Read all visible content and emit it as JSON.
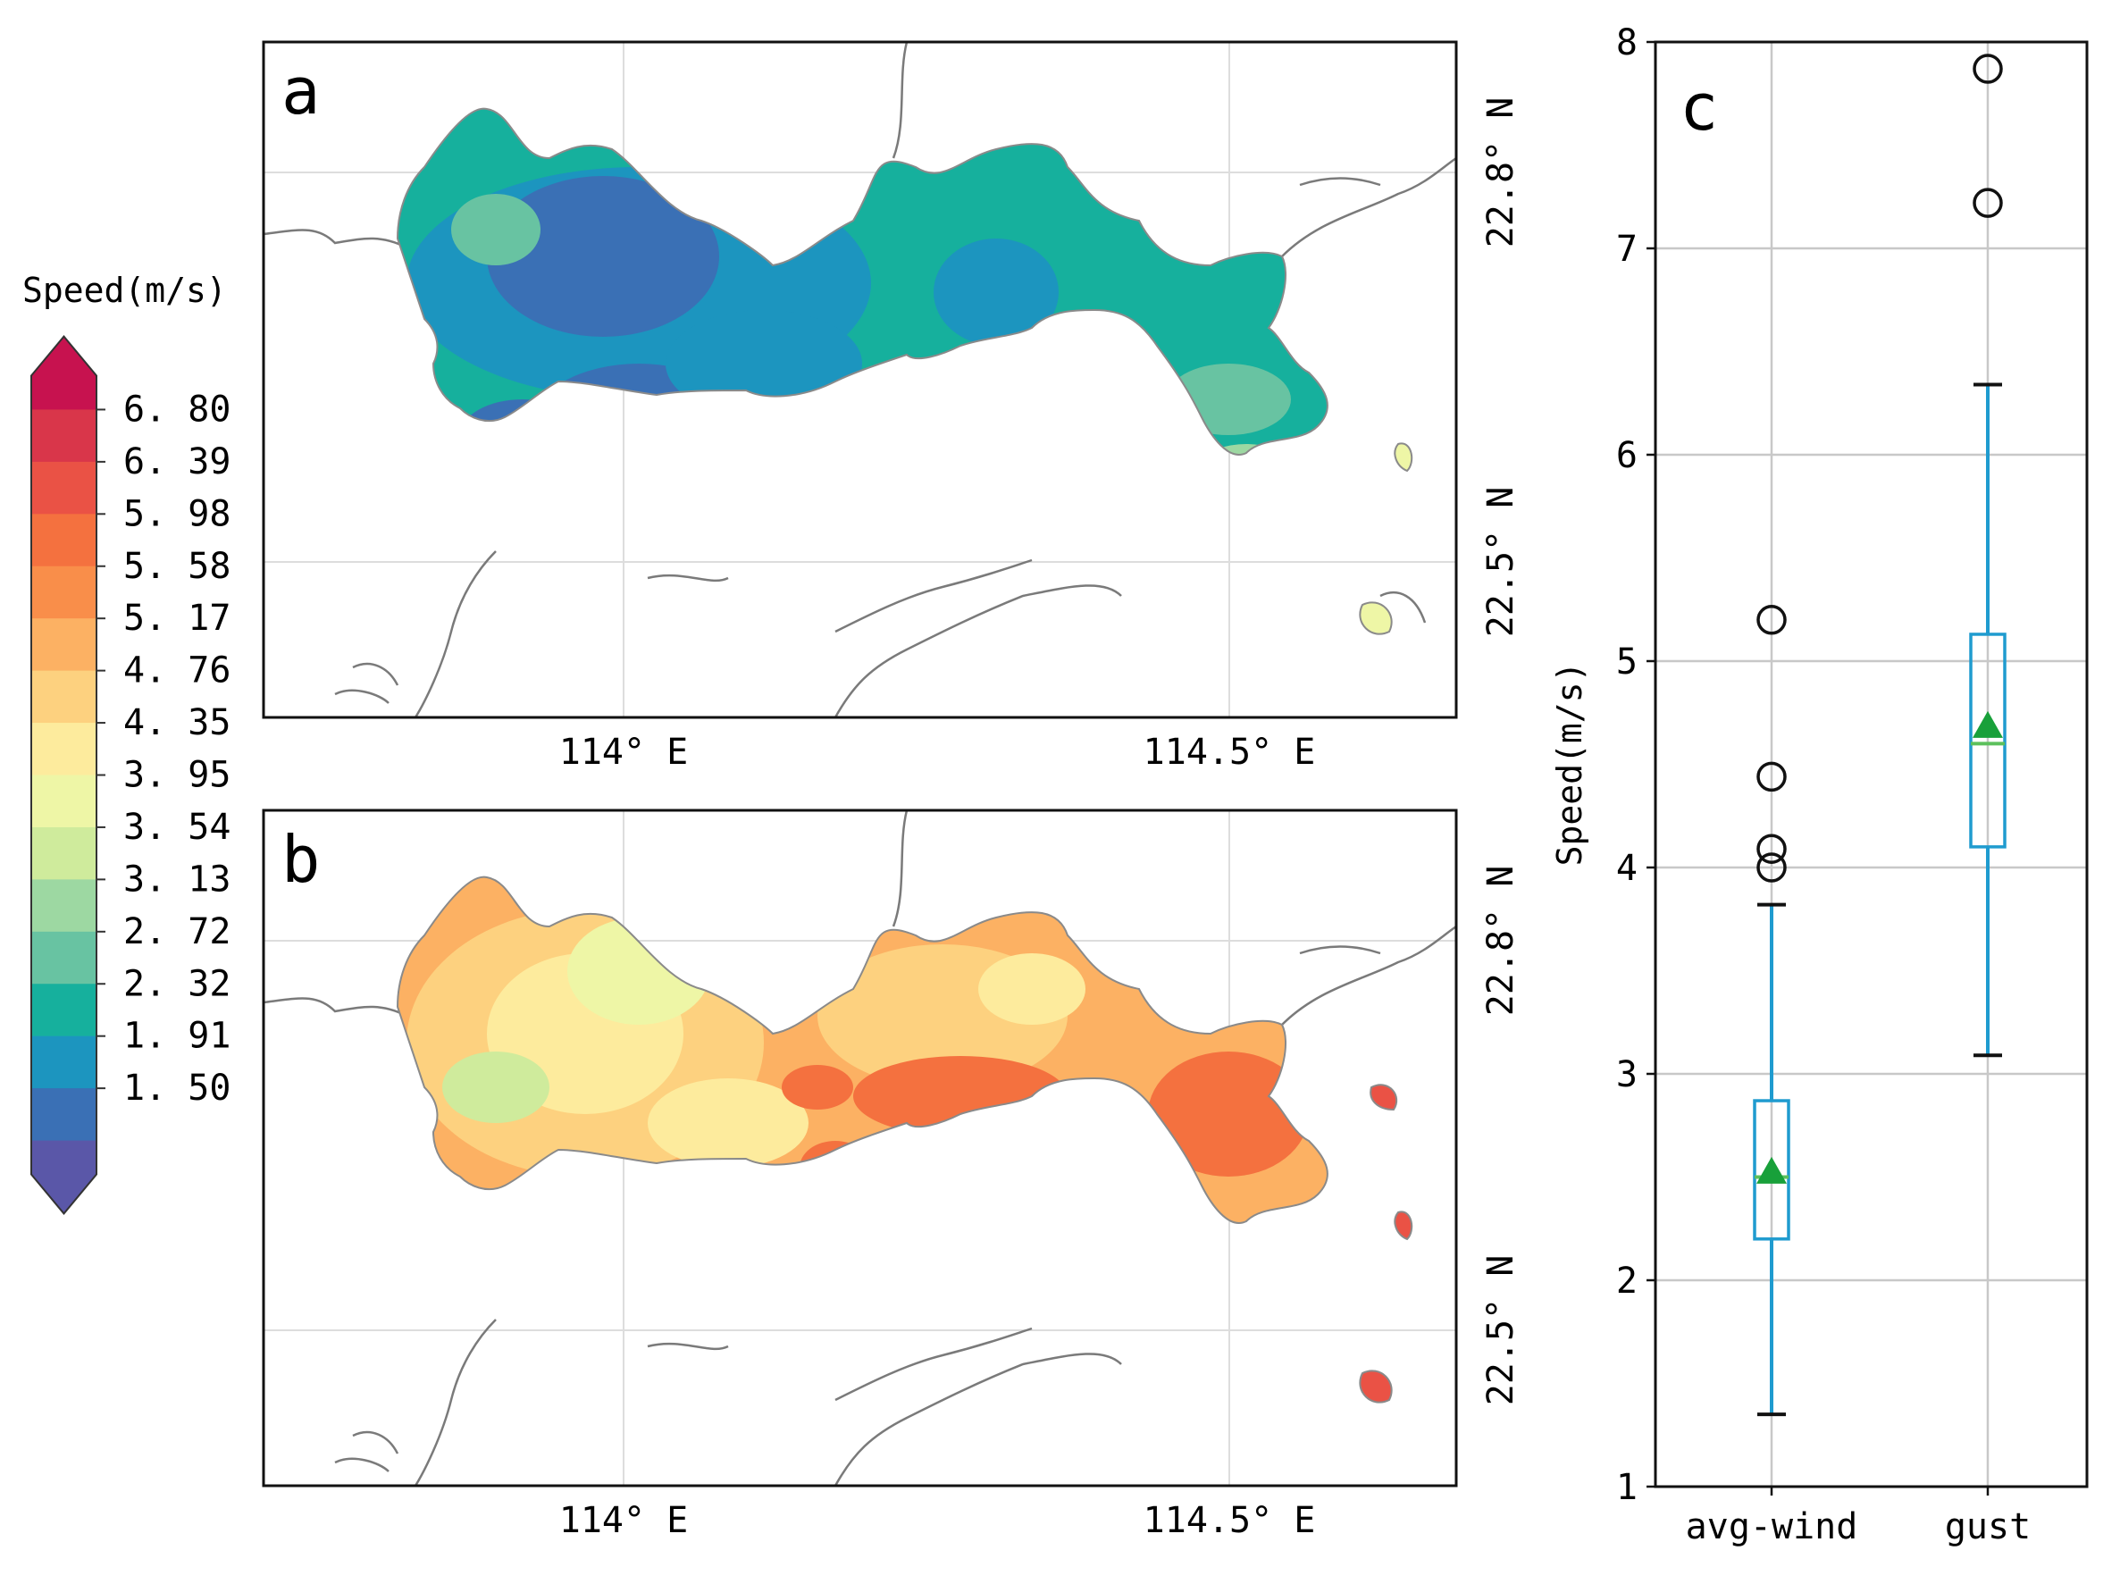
{
  "colorbar": {
    "title": "Speed(m/s)",
    "levels": [
      "6.80",
      "6.39",
      "5.98",
      "5.58",
      "5.17",
      "4.76",
      "4.35",
      "3.95",
      "3.54",
      "3.13",
      "2.72",
      "2.32",
      "1.91",
      "1.50"
    ],
    "colors": [
      "#c7124f",
      "#d9364a",
      "#ea5245",
      "#f4713f",
      "#f98e4a",
      "#fcb163",
      "#fdd17f",
      "#fdeb9d",
      "#eef6a6",
      "#cfeb9c",
      "#9dd8a2",
      "#68c3a2",
      "#16b09d",
      "#1c95bf",
      "#3a70b5",
      "#5a57a8"
    ]
  },
  "panels": {
    "a": {
      "label": "a",
      "xtick_labels": [
        "114° E",
        "114.5° E"
      ],
      "ytick_labels": [
        "22.8° N",
        "22.5° N"
      ]
    },
    "b": {
      "label": "b",
      "xtick_labels": [
        "114° E",
        "114.5° E"
      ],
      "ytick_labels": [
        "22.8° N",
        "22.5° N"
      ]
    }
  },
  "chart_data": {
    "type": "box",
    "label": "c",
    "ylabel": "Speed(m/s)",
    "ylim": [
      1,
      8
    ],
    "yticks": [
      1,
      2,
      3,
      4,
      5,
      6,
      7,
      8
    ],
    "grid": true,
    "categories": [
      "avg-wind",
      "gust"
    ],
    "boxes": [
      {
        "name": "avg-wind",
        "whisker_low": 1.35,
        "q1": 2.2,
        "median": 2.5,
        "q3": 2.87,
        "whisker_high": 3.82,
        "mean": 2.52,
        "outliers": [
          4.0,
          4.09,
          4.44,
          5.2
        ]
      },
      {
        "name": "gust",
        "whisker_low": 3.09,
        "q1": 4.1,
        "median": 4.6,
        "q3": 5.13,
        "whisker_high": 6.34,
        "mean": 4.68,
        "outliers": [
          7.22,
          7.87
        ]
      }
    ],
    "colors": {
      "box": "#1f9bcf",
      "median": "#5cc05c",
      "mean": "#18a03a",
      "outlier": "#111111"
    }
  }
}
